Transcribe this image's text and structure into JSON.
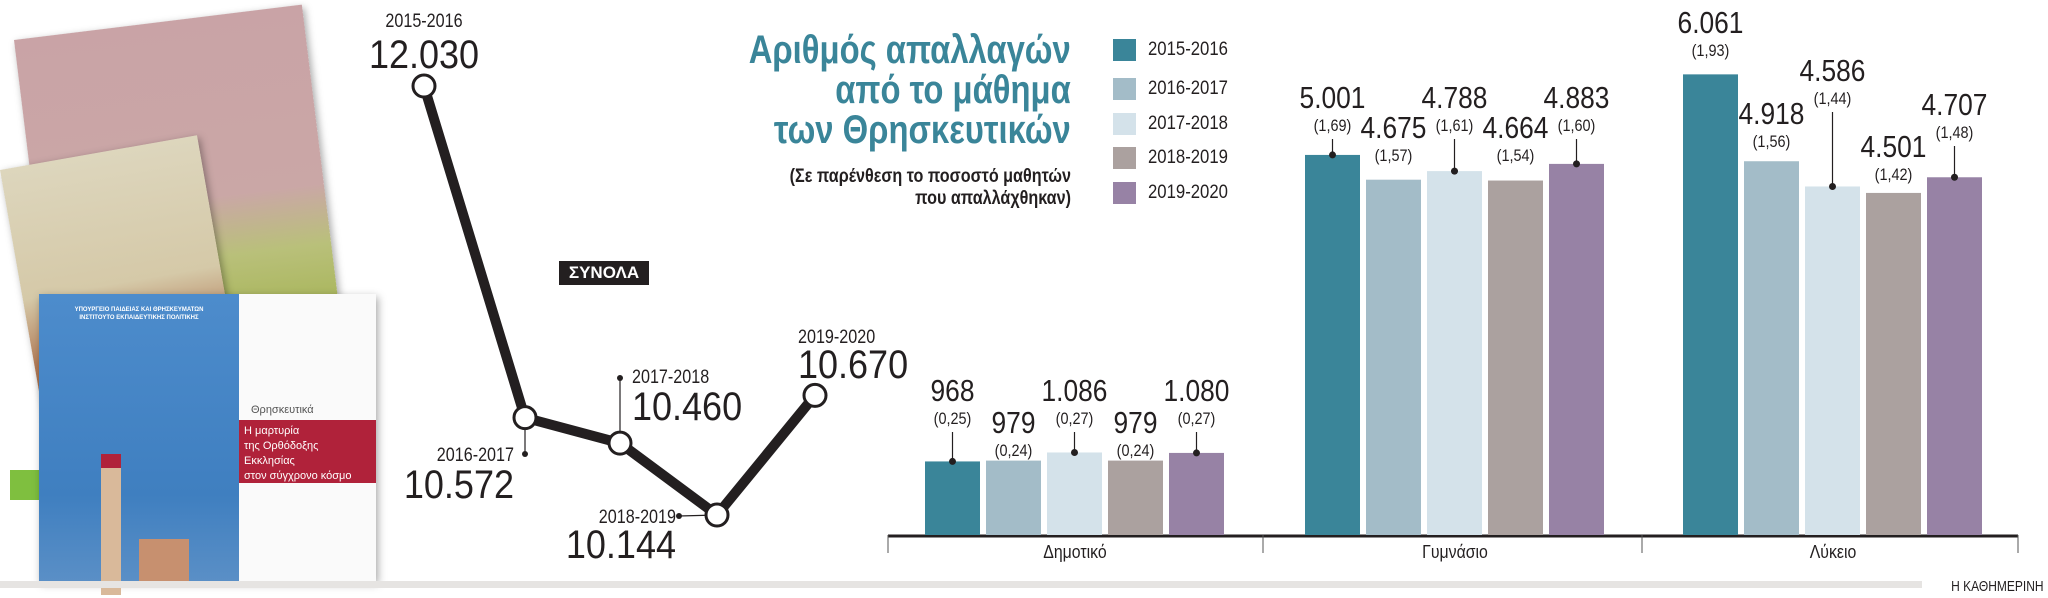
{
  "title": {
    "lines": [
      "Αριθμός απαλλαγών",
      "από το μάθημα",
      "των Θρησκευτικών"
    ],
    "subtitle_lines": [
      "(Σε παρένθεση το ποσοστό μαθητών",
      "που απαλλάχθηκαν)"
    ]
  },
  "badge": "ΣΥΝΟΛΑ",
  "brand": "Η ΚΑΘΗΜΕΡΙΝΗ",
  "book_cover": {
    "publisher_lines": [
      "ΥΠΟΥΡΓΕΙΟ ΠΑΙΔΕΙΑΣ ΚΑΙ ΘΡΗΣΚΕΥΜΑΤΩΝ",
      "ΙΝΣΤΙΤΟΥΤΟ ΕΚΠΑΙΔΕΥΤΙΚΗΣ ΠΟΛΙΤΙΚΗΣ"
    ],
    "subject": "Θρησκευτικά",
    "title_lines": [
      "Η μαρτυρία",
      "της Ορθόδοξης Εκκλησίας",
      "στον σύγχρονο κόσμο"
    ],
    "colors": {
      "blue": "#4a86c5",
      "red": "#b0223a",
      "pink": "#c9a3a6",
      "beige": "#d8cfb4"
    }
  },
  "colors": {
    "2015-2016": "#3a8599",
    "2016-2017": "#a3bcc8",
    "2017-2018": "#d4e2ea",
    "2018-2019": "#aba19f",
    "2019-2020": "#9782a5",
    "title": "#3a8599",
    "line": "#231f20"
  },
  "legend": [
    "2015-2016",
    "2016-2017",
    "2017-2018",
    "2018-2019",
    "2019-2020"
  ],
  "chart_data": [
    {
      "type": "line",
      "title": "ΣΥΝΟΛΑ",
      "x": [
        "2015-2016",
        "2016-2017",
        "2017-2018",
        "2018-2019",
        "2019-2020"
      ],
      "values": [
        12030,
        10572,
        10460,
        10144,
        10670
      ],
      "value_labels": [
        "12.030",
        "10.572",
        "10.460",
        "10.144",
        "10.670"
      ],
      "grid": false
    },
    {
      "type": "bar",
      "categories": [
        "Δημοτικό",
        "Γυμνάσιο",
        "Λύκειο"
      ],
      "series": [
        {
          "name": "2015-2016",
          "values": [
            968,
            5001,
            6061
          ],
          "labels": [
            "968",
            "5.001",
            "6.061"
          ],
          "percent_labels": [
            "(0,25)",
            "(1,69)",
            "(1,93)"
          ],
          "percent": [
            0.25,
            1.69,
            1.93
          ]
        },
        {
          "name": "2016-2017",
          "values": [
            979,
            4675,
            4918
          ],
          "labels": [
            "979",
            "4.675",
            "4.918"
          ],
          "percent_labels": [
            "(0,24)",
            "(1,57)",
            "(1,56)"
          ],
          "percent": [
            0.24,
            1.57,
            1.56
          ]
        },
        {
          "name": "2017-2018",
          "values": [
            1086,
            4788,
            4586
          ],
          "labels": [
            "1.086",
            "4.788",
            "4.586"
          ],
          "percent_labels": [
            "(0,27)",
            "(1,61)",
            "(1,44)"
          ],
          "percent": [
            0.27,
            1.61,
            1.44
          ]
        },
        {
          "name": "2018-2019",
          "values": [
            979,
            4664,
            4501
          ],
          "labels": [
            "979",
            "4.664",
            "4.501"
          ],
          "percent_labels": [
            "(0,24)",
            "(1,54)",
            "(1,42)"
          ],
          "percent": [
            0.24,
            1.54,
            1.42
          ]
        },
        {
          "name": "2019-2020",
          "values": [
            1080,
            4883,
            4707
          ],
          "labels": [
            "1.080",
            "4.883",
            "4.707"
          ],
          "percent_labels": [
            "(0,27)",
            "(1,60)",
            "(1,48)"
          ],
          "percent": [
            0.27,
            1.6,
            1.48
          ]
        }
      ],
      "legend_position": "top",
      "grid": false
    }
  ]
}
